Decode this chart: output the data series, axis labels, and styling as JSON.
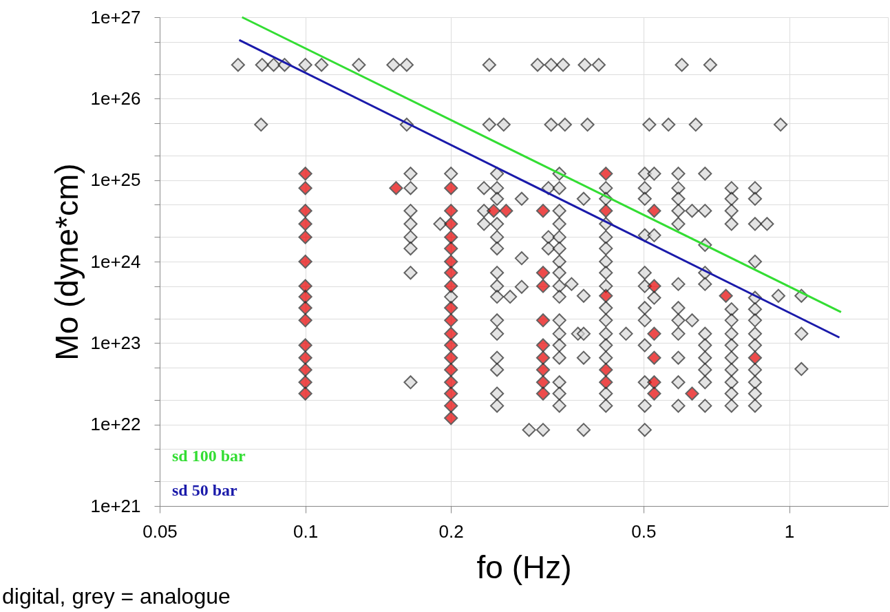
{
  "chart_data": {
    "type": "scatter",
    "xlabel": "fo (Hz)",
    "ylabel": "Mo (dyne*cm)",
    "log": "xy",
    "grid": true,
    "legend": "bottom left",
    "xlim": [
      0.05,
      1.6
    ],
    "xticks": [
      0.05,
      0.1,
      0.2,
      0.5,
      1
    ],
    "ylim": [
      1e+21,
      1e+27
    ],
    "yticks": [
      {
        "value": 1e+21,
        "label": "1e+21"
      },
      {
        "value": 2e+21,
        "label": null
      },
      {
        "value": 5e+21,
        "label": null
      },
      {
        "value": 1e+22,
        "label": "1e+22"
      },
      {
        "value": 2e+22,
        "label": null
      },
      {
        "value": 5e+22,
        "label": null
      },
      {
        "value": 1e+23,
        "label": "1e+23"
      },
      {
        "value": 2e+23,
        "label": null
      },
      {
        "value": 5e+23,
        "label": null
      },
      {
        "value": 1e+24,
        "label": "1e+24"
      },
      {
        "value": 2e+24,
        "label": null
      },
      {
        "value": 5e+24,
        "label": null
      },
      {
        "value": 1e+25,
        "label": "1e+25"
      },
      {
        "value": 2e+25,
        "label": null
      },
      {
        "value": 5e+25,
        "label": null
      },
      {
        "value": 1e+26,
        "label": "1e+26"
      },
      {
        "value": 2e+26,
        "label": null
      },
      {
        "value": 5e+26,
        "label": null
      },
      {
        "value": 1e+27,
        "label": "1e+27"
      }
    ],
    "annotations": [
      "digital, grey = analogue"
    ],
    "series": [
      {
        "marker": "diamond",
        "color": "#d9d9d9",
        "x": [
          0.0726,
          0.0814,
          0.086,
          0.0906,
          0.1,
          0.108,
          0.129,
          0.152,
          0.162,
          0.24,
          0.302,
          0.322,
          0.341,
          0.378,
          0.404,
          0.6,
          0.687,
          0.081,
          0.162,
          0.24,
          0.257,
          0.322,
          0.344,
          0.383,
          0.514,
          0.563,
          0.641,
          0.96,
          0.165,
          0.165,
          0.165,
          0.165,
          0.165,
          0.165,
          0.165,
          0.165,
          0.19,
          0.2,
          0.2,
          0.234,
          0.234,
          0.234,
          0.249,
          0.249,
          0.249,
          0.249,
          0.249,
          0.249,
          0.249,
          0.249,
          0.249,
          0.249,
          0.249,
          0.249,
          0.249,
          0.249,
          0.249,
          0.28,
          0.28,
          0.28,
          0.265,
          0.29,
          0.31,
          0.318,
          0.318,
          0.318,
          0.335,
          0.335,
          0.335,
          0.335,
          0.335,
          0.335,
          0.335,
          0.335,
          0.335,
          0.335,
          0.335,
          0.335,
          0.335,
          0.335,
          0.335,
          0.335,
          0.335,
          0.355,
          0.366,
          0.376,
          0.376,
          0.376,
          0.376,
          0.376,
          0.418,
          0.418,
          0.418,
          0.418,
          0.418,
          0.418,
          0.418,
          0.418,
          0.418,
          0.418,
          0.418,
          0.418,
          0.418,
          0.418,
          0.418,
          0.46,
          0.503,
          0.503,
          0.503,
          0.503,
          0.503,
          0.503,
          0.503,
          0.503,
          0.503,
          0.503,
          0.503,
          0.503,
          0.526,
          0.526,
          0.526,
          0.59,
          0.59,
          0.59,
          0.59,
          0.59,
          0.59,
          0.59,
          0.59,
          0.59,
          0.59,
          0.59,
          0.59,
          0.63,
          0.63,
          0.67,
          0.67,
          0.67,
          0.67,
          0.67,
          0.67,
          0.67,
          0.67,
          0.67,
          0.67,
          0.67,
          0.76,
          0.76,
          0.76,
          0.76,
          0.76,
          0.76,
          0.76,
          0.76,
          0.76,
          0.76,
          0.76,
          0.76,
          0.76,
          0.85,
          0.85,
          0.85,
          0.85,
          0.85,
          0.85,
          0.85,
          0.85,
          0.85,
          0.85,
          0.85,
          0.85,
          0.85,
          0.9,
          0.95,
          1.06,
          1.06,
          1.06
        ],
        "values": [
          2.6e+26,
          2.6e+26,
          2.6e+26,
          2.6e+26,
          2.6e+26,
          2.6e+26,
          2.6e+26,
          2.6e+26,
          2.6e+26,
          2.6e+26,
          2.6e+26,
          2.6e+26,
          2.6e+26,
          2.6e+26,
          2.6e+26,
          2.6e+26,
          2.6e+26,
          4.8e+25,
          4.8e+25,
          4.8e+25,
          4.8e+25,
          4.8e+25,
          4.8e+25,
          4.8e+25,
          4.8e+25,
          4.8e+25,
          4.8e+25,
          4.8e+25,
          1.2e+25,
          8e+24,
          4.2e+24,
          2.9e+24,
          2e+24,
          1.45e+24,
          7.3e+23,
          3.3e+22,
          2.9e+24,
          1.2e+25,
          3.7e+23,
          8e+24,
          4.2e+24,
          2.9e+24,
          1.2e+25,
          8e+24,
          5.9e+24,
          2.9e+24,
          2e+24,
          1.45e+24,
          7.3e+23,
          5e+23,
          3.7e+23,
          1.9e+23,
          1.3e+23,
          6.6e+22,
          4.7e+22,
          2.4e+22,
          1.7e+22,
          5.9e+24,
          1.1e+24,
          4.9e+23,
          3.7e+23,
          8.6e+21,
          8.6e+21,
          8e+24,
          2e+24,
          1.45e+24,
          1.2e+25,
          8e+24,
          4.2e+24,
          2.9e+24,
          2e+24,
          1.45e+24,
          1e+24,
          7.3e+23,
          5e+23,
          3.7e+23,
          1.9e+23,
          1.3e+23,
          9.4e+22,
          6.6e+22,
          3.3e+22,
          2.4e+22,
          1.7e+22,
          5.3e+23,
          1.3e+23,
          5.9e+24,
          3.8e+23,
          1.3e+23,
          6.6e+22,
          8.6e+21,
          8e+24,
          5.9e+24,
          2.9e+24,
          2e+24,
          1.45e+24,
          1e+24,
          7.3e+23,
          5e+23,
          2.7e+23,
          1.9e+23,
          1.3e+23,
          9.4e+22,
          6.6e+22,
          2.4e+22,
          1.7e+22,
          1.3e+23,
          1.2e+25,
          8e+24,
          5.9e+24,
          2.1e+24,
          7.3e+23,
          5e+23,
          2.7e+23,
          1.9e+23,
          9.4e+22,
          3.3e+22,
          1.7e+22,
          8.6e+21,
          1.2e+25,
          2.1e+24,
          3.6e+23,
          1.2e+25,
          8e+24,
          5.9e+24,
          4.2e+24,
          2.9e+24,
          5.3e+23,
          2.7e+23,
          1.9e+23,
          1.3e+23,
          6.6e+22,
          3.3e+22,
          1.7e+22,
          4.2e+24,
          1.9e+23,
          1.2e+25,
          4.2e+24,
          1.6e+24,
          7.3e+23,
          5.3e+23,
          1.3e+23,
          9.4e+22,
          6.6e+22,
          4.7e+22,
          3.3e+22,
          1.7e+22,
          8e+24,
          5.9e+24,
          4.2e+24,
          2.9e+24,
          2.6e+23,
          1.9e+23,
          1.3e+23,
          9.4e+22,
          6.6e+22,
          4.7e+22,
          3.3e+22,
          2.4e+22,
          1.7e+22,
          8e+24,
          5.9e+24,
          2.9e+24,
          1e+24,
          3.6e+23,
          2.6e+23,
          1.9e+23,
          1.3e+23,
          9.4e+22,
          4.7e+22,
          3.3e+22,
          2.4e+22,
          1.7e+22,
          2.9e+24,
          3.8e+23,
          3.8e+23,
          1.3e+23,
          4.8e+22
        ]
      },
      {
        "marker": "diamond",
        "color": "#e60000",
        "x": [
          0.1,
          0.1,
          0.1,
          0.1,
          0.1,
          0.1,
          0.1,
          0.1,
          0.1,
          0.1,
          0.1,
          0.1,
          0.1,
          0.1,
          0.1,
          0.154,
          0.2,
          0.2,
          0.2,
          0.2,
          0.2,
          0.2,
          0.2,
          0.2,
          0.2,
          0.2,
          0.2,
          0.2,
          0.2,
          0.2,
          0.2,
          0.2,
          0.2,
          0.2,
          0.245,
          0.26,
          0.31,
          0.31,
          0.31,
          0.31,
          0.31,
          0.31,
          0.31,
          0.31,
          0.31,
          0.418,
          0.418,
          0.418,
          0.418,
          0.418,
          0.526,
          0.526,
          0.526,
          0.526,
          0.526,
          0.526,
          0.63,
          0.74,
          0.85
        ],
        "values": [
          1.2e+25,
          8e+24,
          4.2e+24,
          2.9e+24,
          2e+24,
          1e+24,
          5e+23,
          3.7e+23,
          2.7e+23,
          1.9e+23,
          9.4e+22,
          6.6e+22,
          4.7e+22,
          3.3e+22,
          2.4e+22,
          8e+24,
          8e+24,
          4.2e+24,
          2.9e+24,
          2e+24,
          1.45e+24,
          1e+24,
          7.3e+23,
          5e+23,
          2.7e+23,
          1.9e+23,
          1.3e+23,
          9.4e+22,
          6.6e+22,
          4.7e+22,
          3.3e+22,
          2.4e+22,
          1.7e+22,
          1.2e+22,
          4.2e+24,
          4.2e+24,
          4.2e+24,
          7.3e+23,
          5e+23,
          1.9e+23,
          9.4e+22,
          6.6e+22,
          4.7e+22,
          3.3e+22,
          2.4e+22,
          1.2e+25,
          4.2e+24,
          3.8e+23,
          4.7e+22,
          3.3e+22,
          4.2e+24,
          5e+23,
          1.3e+23,
          6.6e+22,
          3.3e+22,
          2.4e+22,
          2.4e+22,
          3.8e+23,
          6.6e+22
        ]
      },
      {
        "type": "line",
        "name": "sd 100 bar",
        "color": "#33dd33",
        "x": [
          0.074,
          1.28
        ],
        "values": [
          1e+27,
          2.4e+23
        ]
      },
      {
        "type": "line",
        "name": "sd 50 bar",
        "color": "#1a1aaa",
        "x": [
          0.073,
          1.27
        ],
        "values": [
          5.25e+26,
          1.17e+23
        ]
      }
    ]
  }
}
